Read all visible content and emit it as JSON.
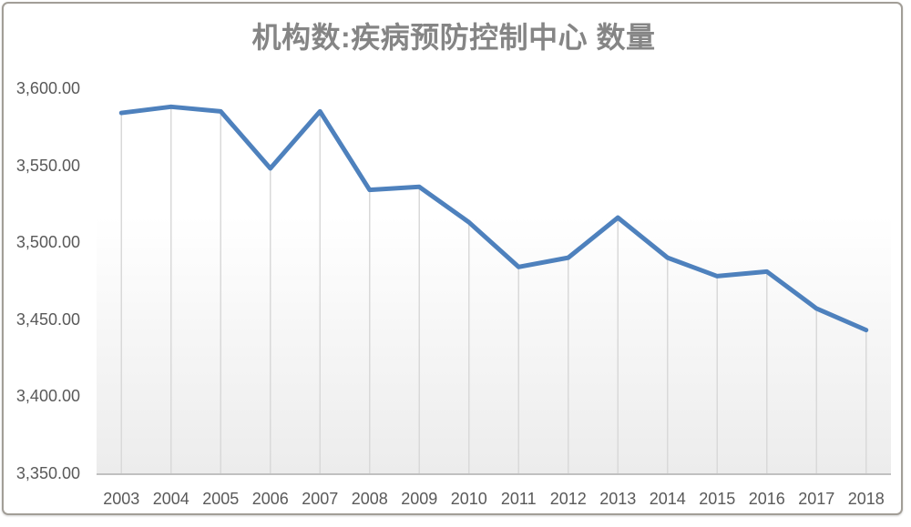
{
  "window": {
    "background": "#ffffff",
    "frame_border_color": "#a29e97"
  },
  "chart_data": {
    "type": "line",
    "title": "机构数:疾病预防控制中心 数量",
    "categories": [
      "2003",
      "2004",
      "2005",
      "2006",
      "2007",
      "2008",
      "2009",
      "2010",
      "2011",
      "2012",
      "2013",
      "2014",
      "2015",
      "2016",
      "2017",
      "2018"
    ],
    "series": [
      {
        "name": "机构数:疾病预防控制中心 数量",
        "values": [
          3584,
          3588,
          3585,
          3548,
          3585,
          3534,
          3536,
          3513,
          3484,
          3490,
          3516,
          3490,
          3478,
          3481,
          3457,
          3443
        ]
      }
    ],
    "xlabel": "",
    "ylabel": "",
    "ylim": [
      3350,
      3600
    ],
    "yticks": [
      {
        "value": 3350,
        "label": "3,350.00"
      },
      {
        "value": 3400,
        "label": "3,400.00"
      },
      {
        "value": 3450,
        "label": "3,450.00"
      },
      {
        "value": 3500,
        "label": "3,500.00"
      },
      {
        "value": 3550,
        "label": "3,550.00"
      },
      {
        "value": 3600,
        "label": "3,600.00"
      }
    ],
    "legend": "none",
    "grid": {
      "horizontal": false,
      "vertical": false,
      "drop_lines_from_points_to_axis": true
    },
    "colors": {
      "line": "#4e81bd",
      "drop_line": "#d9d9d9",
      "axis_line": "#c0c0c0",
      "tick_label": "#595959",
      "title": "#858585",
      "plot_fill_top": "#ffffff",
      "plot_fill_bottom": "#ececec"
    }
  }
}
